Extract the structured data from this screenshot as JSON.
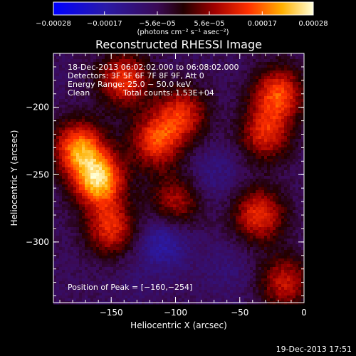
{
  "chart_data": {
    "type": "heatmap",
    "title": "Reconstructed RHESSI Image",
    "xlabel": "Heliocentric X (arcsec)",
    "ylabel": "Heliocentric Y (arcsec)",
    "x_ticks": [
      -150,
      -100,
      -50,
      0
    ],
    "x_tick_labels": [
      "−150",
      "−100",
      "−50",
      "0"
    ],
    "y_ticks": [
      -200,
      -250,
      -300
    ],
    "y_tick_labels": [
      "−200",
      "−250",
      "−300"
    ],
    "xlim": [
      -195,
      0
    ],
    "ylim": [
      -345,
      -160
    ],
    "colorbar": {
      "ticks": [
        -0.00028,
        -0.00017,
        -5.6e-05,
        5.6e-05,
        0.00017,
        0.00028
      ],
      "tick_labels": [
        "−0.00028",
        "−0.00017",
        "−5.6e−05",
        "5.6e−05",
        "0.00017",
        "0.00028"
      ],
      "unit_label": "(photons cm⁻² s⁻¹ asec⁻²)",
      "range": [
        -0.00028,
        0.00028
      ]
    },
    "annotations": {
      "time": "18-Dec-2013 06:02:02.000 to 06:08:02.000",
      "detectors": "Detectors: 3F 5F 6F 7F 8F 9F, Att 0",
      "energy": "Energy Range: 25.0 − 50.0 keV",
      "method": "Clean",
      "counts": "Total counts: 1.53E+04",
      "peak": "Position of Peak = [−160,−254]"
    },
    "peak_position": [
      -160,
      -254
    ],
    "bright_sources": [
      {
        "x": -160,
        "y": -254,
        "value": 0.00028
      },
      {
        "x": -175,
        "y": -230,
        "value": 0.00022
      },
      {
        "x": -150,
        "y": -290,
        "value": 0.00015
      },
      {
        "x": -115,
        "y": -225,
        "value": 0.00017
      },
      {
        "x": -95,
        "y": -205,
        "value": 0.00014
      },
      {
        "x": -140,
        "y": -180,
        "value": 0.00016
      },
      {
        "x": -20,
        "y": -190,
        "value": 0.00018
      },
      {
        "x": -30,
        "y": -220,
        "value": 0.00014
      },
      {
        "x": -35,
        "y": -280,
        "value": 0.00016
      },
      {
        "x": -15,
        "y": -330,
        "value": 0.00012
      },
      {
        "x": -100,
        "y": -270,
        "value": 0.0001
      }
    ],
    "dark_regions": [
      {
        "x": -110,
        "y": -300,
        "value": -0.00018
      },
      {
        "x": -70,
        "y": -250,
        "value": -0.00012
      },
      {
        "x": -60,
        "y": -320,
        "value": -0.0001
      },
      {
        "x": -130,
        "y": -330,
        "value": -8e-05
      }
    ]
  },
  "footer": {
    "timestamp": "19-Dec-2013 17:51"
  }
}
